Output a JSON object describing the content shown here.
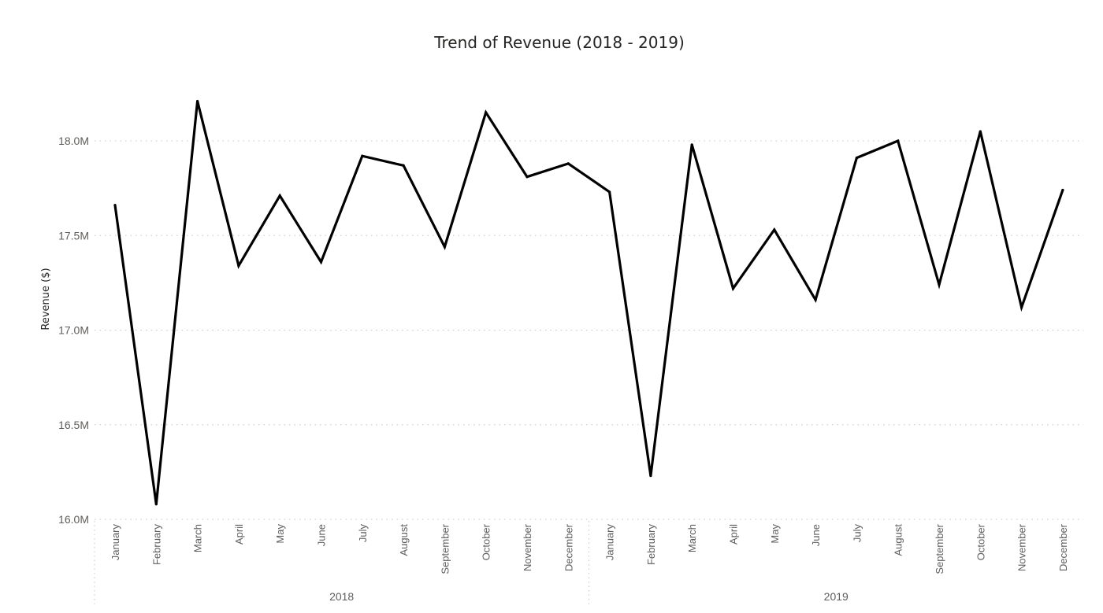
{
  "chart_data": {
    "type": "line",
    "title": "Trend of Revenue (2018 - 2019)",
    "xlabel": "",
    "ylabel": "Revenue ($)",
    "ylim": [
      16000000,
      18000000
    ],
    "yticks": [
      {
        "value": 16000000,
        "label": "16.0M"
      },
      {
        "value": 16500000,
        "label": "16.5M"
      },
      {
        "value": 17000000,
        "label": "17.0M"
      },
      {
        "value": 17500000,
        "label": "17.5M"
      },
      {
        "value": 18000000,
        "label": "18.0M"
      }
    ],
    "grid": true,
    "legend": "none",
    "line_color": "#000000",
    "groups": [
      {
        "label": "2018",
        "months": [
          "January",
          "February",
          "March",
          "April",
          "May",
          "June",
          "July",
          "August",
          "September",
          "October",
          "November",
          "December"
        ]
      },
      {
        "label": "2019",
        "months": [
          "January",
          "February",
          "March",
          "April",
          "May",
          "June",
          "July",
          "August",
          "September",
          "October",
          "November",
          "December"
        ]
      }
    ],
    "series": [
      {
        "values": [
          17660000,
          16080000,
          18210000,
          17340000,
          17710000,
          17360000,
          17920000,
          17870000,
          17440000,
          18150000,
          17810000,
          17880000,
          17730000,
          16230000,
          17980000,
          17220000,
          17530000,
          17160000,
          17910000,
          18000000,
          17240000,
          18050000,
          17120000,
          17740000
        ]
      }
    ]
  }
}
